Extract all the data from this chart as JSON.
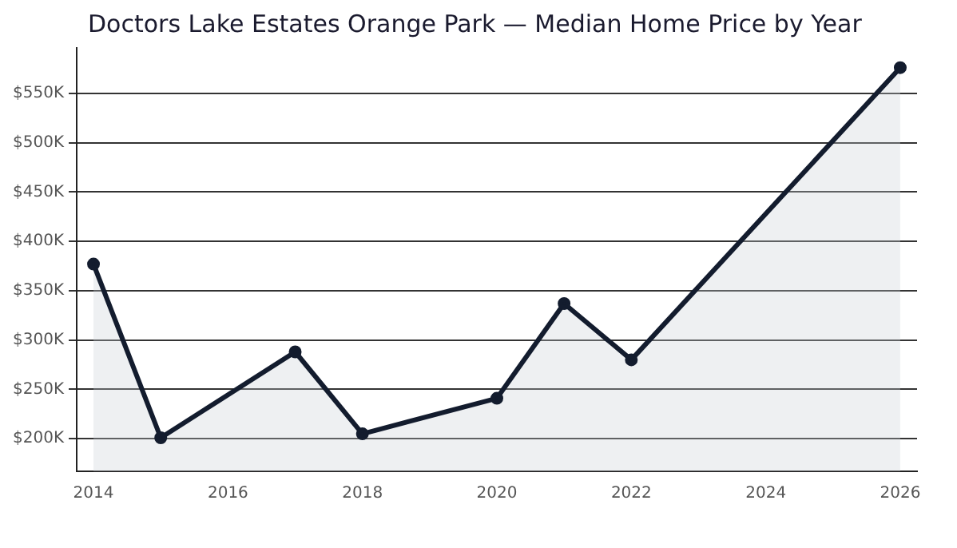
{
  "chart_data": {
    "type": "area",
    "title": "Doctors Lake Estates Orange Park — Median Home Price by Year",
    "x": [
      2014,
      2015,
      2017,
      2018,
      2020,
      2021,
      2022,
      2026
    ],
    "series": [
      {
        "color": "#131c2e",
        "values": [
          377,
          201,
          288,
          205,
          241,
          337,
          280,
          576
        ]
      }
    ],
    "xlim": [
      2013.75,
      2026.25
    ],
    "xticks": [
      2014,
      2016,
      2018,
      2020,
      2022,
      2024,
      2026
    ],
    "ylim": [
      167,
      596
    ],
    "yticks": [
      {
        "value": 200,
        "label": "$200K"
      },
      {
        "value": 250,
        "label": "$250K"
      },
      {
        "value": 300,
        "label": "$300K"
      },
      {
        "value": 350,
        "label": "$350K"
      },
      {
        "value": 400,
        "label": "$400K"
      },
      {
        "value": 450,
        "label": "$450K"
      },
      {
        "value": 500,
        "label": "$500K"
      },
      {
        "value": 550,
        "label": "$550K"
      }
    ],
    "grid": "y",
    "marker": "circle",
    "line_style": "solid",
    "legend": false
  }
}
